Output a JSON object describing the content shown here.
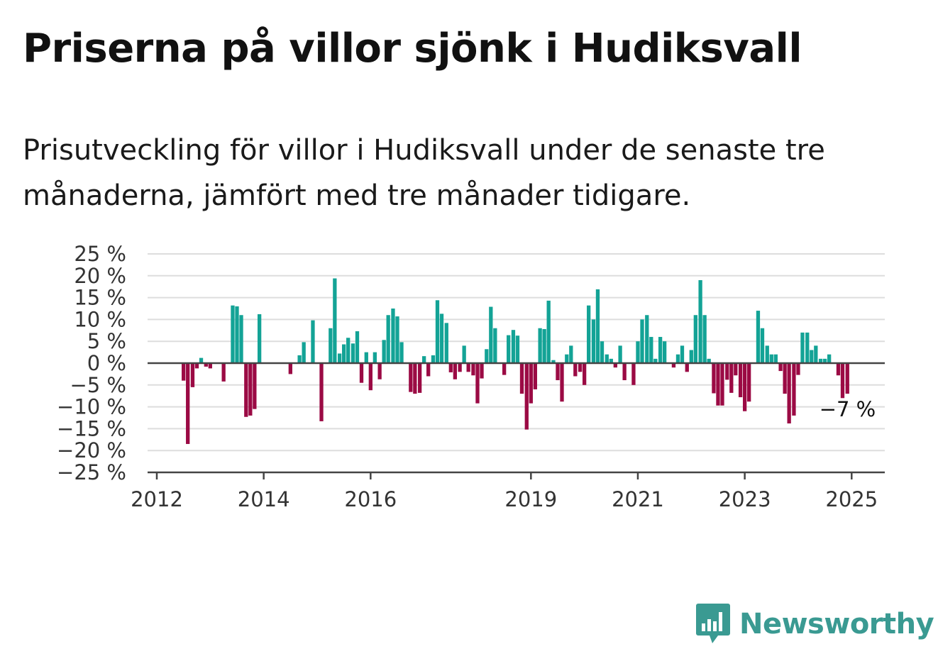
{
  "title": "Priserna på villor sjönk i Hudiksvall",
  "subtitle": "Prisutveckling för villor i Hudiksvall under de senaste tre månaderna, jämfört med tre månader tidigare.",
  "brand": {
    "name": "Newsworthy",
    "icon": "newsworthy-logo-icon",
    "color": "#3a9a92"
  },
  "chart_data": {
    "type": "bar",
    "x_unit": "year",
    "x_range": [
      2012,
      2025.33
    ],
    "ylim": [
      -25,
      25
    ],
    "y_ticks": [
      25,
      20,
      15,
      10,
      5,
      0,
      -5,
      -10,
      -15,
      -20,
      -25
    ],
    "y_tick_labels": [
      "25 %",
      "20 %",
      "15 %",
      "10 %",
      "5 %",
      "0 %",
      "−5 %",
      "−10 %",
      "−15 %",
      "−20 %",
      "−25 %"
    ],
    "x_ticks": [
      2012,
      2014,
      2016,
      2019,
      2021,
      2023,
      2025
    ],
    "x_tick_labels": [
      "2012",
      "2014",
      "2016",
      "2019",
      "2021",
      "2023",
      "2025"
    ],
    "grid": true,
    "colors": {
      "positive": "#13a396",
      "negative": "#9b0a44",
      "grid": "#dddddd",
      "axis": "#444444"
    },
    "annotation": {
      "text": "−7 %",
      "x": 2024.92,
      "y": -7
    },
    "x": [
      2012.5,
      2012.58,
      2012.67,
      2012.75,
      2012.83,
      2012.92,
      2013.0,
      2013.08,
      2013.17,
      2013.25,
      2013.33,
      2013.42,
      2013.5,
      2013.58,
      2013.67,
      2013.75,
      2013.83,
      2013.92,
      2014.0,
      2014.08,
      2014.17,
      2014.25,
      2014.33,
      2014.42,
      2014.5,
      2014.58,
      2014.67,
      2014.75,
      2014.83,
      2014.92,
      2015.0,
      2015.08,
      2015.17,
      2015.25,
      2015.33,
      2015.42,
      2015.5,
      2015.58,
      2015.67,
      2015.75,
      2015.83,
      2015.92,
      2016.0,
      2016.08,
      2016.17,
      2016.25,
      2016.33,
      2016.42,
      2016.5,
      2016.58,
      2016.67,
      2016.75,
      2016.83,
      2016.92,
      2017.0,
      2017.08,
      2017.17,
      2017.25,
      2017.33,
      2017.42,
      2017.5,
      2017.58,
      2017.67,
      2017.75,
      2017.83,
      2017.92,
      2018.0,
      2018.08,
      2018.17,
      2018.25,
      2018.33,
      2018.42,
      2018.5,
      2018.58,
      2018.67,
      2018.75,
      2018.83,
      2018.92,
      2019.0,
      2019.08,
      2019.17,
      2019.25,
      2019.33,
      2019.42,
      2019.5,
      2019.58,
      2019.67,
      2019.75,
      2019.83,
      2019.92,
      2020.0,
      2020.08,
      2020.17,
      2020.25,
      2020.33,
      2020.42,
      2020.5,
      2020.58,
      2020.67,
      2020.75,
      2020.83,
      2020.92,
      2021.0,
      2021.08,
      2021.17,
      2021.25,
      2021.33,
      2021.42,
      2021.5,
      2021.58,
      2021.67,
      2021.75,
      2021.83,
      2021.92,
      2022.0,
      2022.08,
      2022.17,
      2022.25,
      2022.33,
      2022.42,
      2022.5,
      2022.58,
      2022.67,
      2022.75,
      2022.83,
      2022.92,
      2023.0,
      2023.08,
      2023.17,
      2023.25,
      2023.33,
      2023.42,
      2023.5,
      2023.58,
      2023.67,
      2023.75,
      2023.83,
      2023.92,
      2024.0,
      2024.08,
      2024.17,
      2024.25,
      2024.33,
      2024.42,
      2024.5,
      2024.58,
      2024.67,
      2024.75,
      2024.83,
      2024.92
    ],
    "values": [
      -4,
      -18.5,
      -5.5,
      -1.2,
      1.2,
      -0.8,
      -1.2,
      0,
      0,
      -4.2,
      0,
      13.2,
      13,
      11,
      -12.3,
      -12,
      -10.5,
      11.2,
      0,
      0,
      0,
      0,
      0,
      0,
      -2.5,
      0,
      1.8,
      4.8,
      0,
      9.8,
      0,
      -13.3,
      0,
      8,
      19.4,
      2.2,
      4.3,
      5.8,
      4.5,
      7.3,
      -4.5,
      2.5,
      -6.2,
      2.5,
      -3.7,
      5.3,
      11,
      12.5,
      10.7,
      4.8,
      0,
      -6.6,
      -7,
      -6.8,
      1.6,
      -3,
      1.8,
      14.4,
      11.3,
      9.2,
      -2.1,
      -3.7,
      -2,
      4,
      -2,
      -2.8,
      -9.2,
      -3.5,
      3.2,
      12.9,
      8,
      0,
      -2.7,
      6.4,
      7.6,
      6.3,
      -7,
      -15.2,
      -9.2,
      -6,
      8,
      7.8,
      14.3,
      0.7,
      -3.9,
      -8.8,
      2,
      4,
      -3,
      -2,
      -5,
      13.2,
      10,
      16.9,
      5,
      2,
      1,
      -1,
      4,
      -3.9,
      0,
      -5,
      5,
      10,
      11,
      6,
      1,
      6,
      5,
      0,
      -1,
      2,
      4,
      -2,
      3,
      11,
      19,
      11,
      1,
      -6.9,
      -9.7,
      -9.7,
      -3.8,
      -6.8,
      -2.8,
      -7.8,
      -11,
      -8.8,
      0,
      12,
      8,
      4,
      2,
      2,
      -1.8,
      -7,
      -13.8,
      -12,
      -2.7,
      7,
      7,
      3,
      4,
      1,
      1,
      2,
      0,
      -2.8,
      -8,
      -7
    ]
  }
}
